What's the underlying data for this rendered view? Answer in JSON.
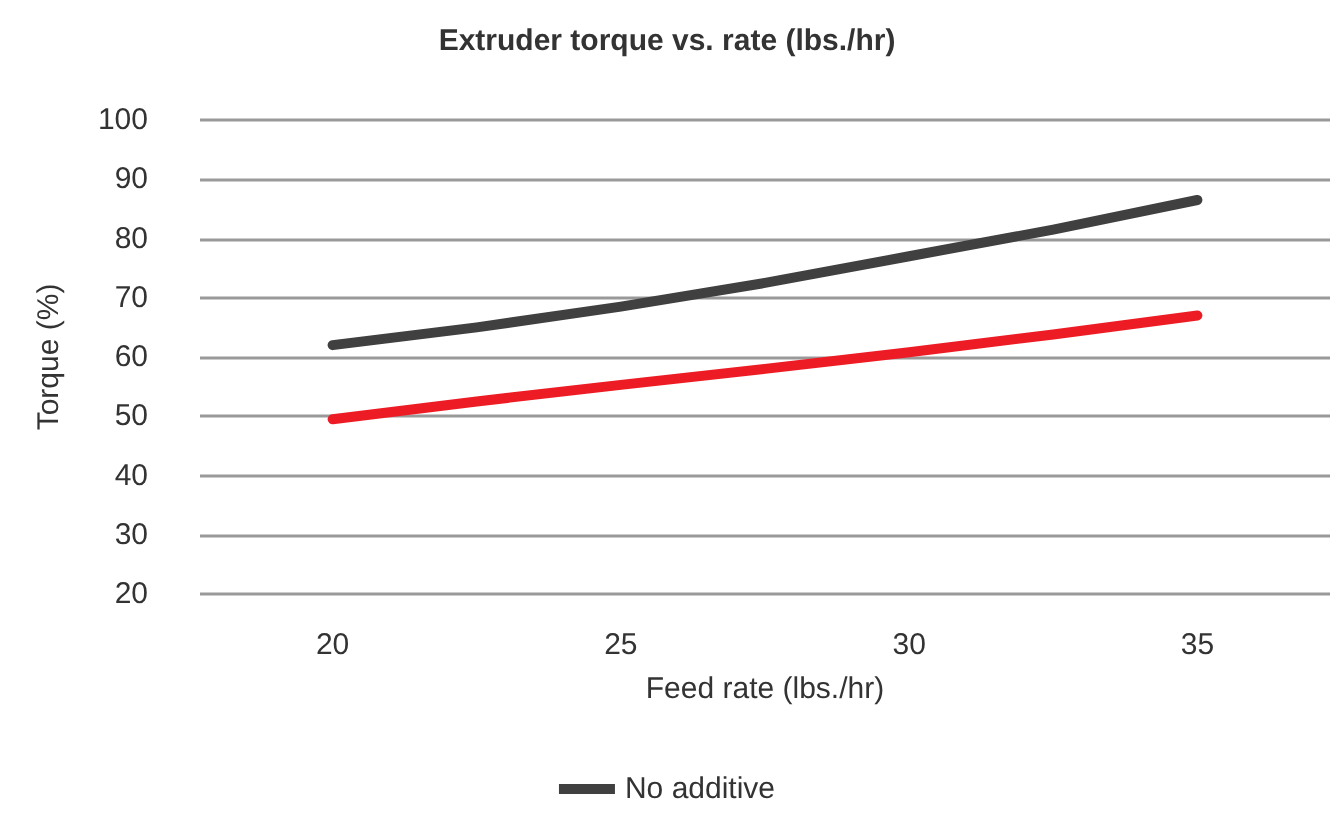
{
  "chart_data": {
    "type": "line",
    "title": "Extruder torque vs. rate (lbs./hr)",
    "xlabel": "Feed rate (lbs./hr)",
    "ylabel": "Torque (%)",
    "x": [
      20,
      22.5,
      25,
      27.5,
      30,
      32.5,
      35
    ],
    "series": [
      {
        "name": "No additive",
        "color": "#404040",
        "values": [
          62,
          65,
          68.5,
          72.5,
          77,
          81.5,
          86.5
        ]
      },
      {
        "color": "#ed1c24",
        "values": [
          49.5,
          52.5,
          55.3,
          58,
          60.8,
          63.8,
          67
        ]
      }
    ],
    "xlim": [
      17.7,
      37.3
    ],
    "xticks": [
      20,
      25,
      30,
      35
    ],
    "ylim": [
      20,
      100
    ],
    "yticks": [
      20,
      30,
      40,
      50,
      60,
      70,
      80,
      90,
      100
    ],
    "grid": "y",
    "legend": "bottom",
    "marker": "none",
    "line_style": "solid"
  }
}
